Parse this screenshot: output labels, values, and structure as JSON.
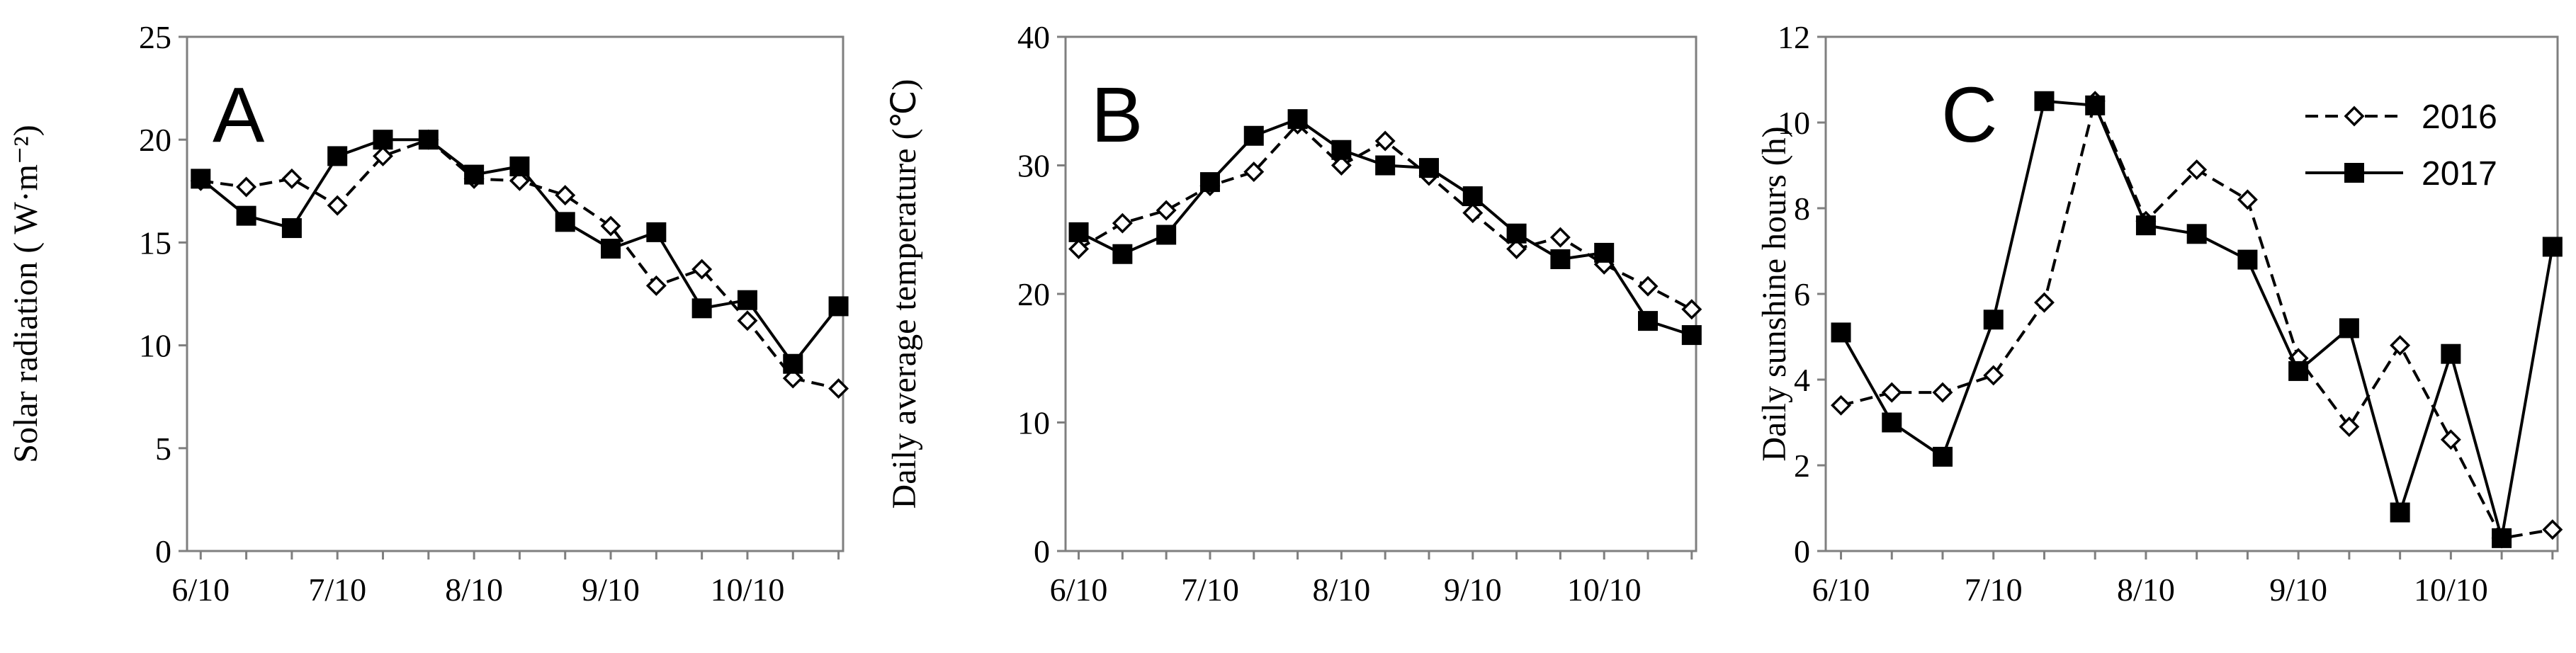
{
  "chart_data": [
    {
      "type": "line",
      "panel": "A",
      "ylabel": "Solar radiation ( W·m⁻²)",
      "ylim": [
        0,
        25
      ],
      "yticks": [
        0,
        5,
        10,
        15,
        20,
        25
      ],
      "xtick_labels": [
        "6/10",
        "7/10",
        "8/10",
        "9/10",
        "10/10"
      ],
      "x_unit": "10-day period",
      "x": [
        0,
        1,
        2,
        3,
        4,
        5,
        6,
        7,
        8,
        9,
        10,
        11,
        12,
        13,
        14
      ],
      "series": [
        {
          "name": "2016",
          "style": "dashed-open-diamond",
          "values": [
            18.0,
            17.7,
            18.1,
            16.8,
            19.2,
            20.0,
            18.1,
            18.0,
            17.3,
            15.8,
            12.9,
            13.7,
            11.2,
            8.4,
            7.9
          ]
        },
        {
          "name": "2017",
          "style": "solid-filled-square",
          "values": [
            18.1,
            16.3,
            15.7,
            19.2,
            20.0,
            20.0,
            18.3,
            18.7,
            16.0,
            14.7,
            15.5,
            11.8,
            12.2,
            9.1,
            11.9
          ]
        }
      ]
    },
    {
      "type": "line",
      "panel": "B",
      "ylabel": "Daily average temperature (℃)",
      "ylim": [
        0,
        40
      ],
      "yticks": [
        0,
        10,
        20,
        30,
        40
      ],
      "xtick_labels": [
        "6/10",
        "7/10",
        "8/10",
        "9/10",
        "10/10"
      ],
      "x_unit": "10-day period",
      "x": [
        0,
        1,
        2,
        3,
        4,
        5,
        6,
        7,
        8,
        9,
        10,
        11,
        12,
        13,
        14
      ],
      "series": [
        {
          "name": "2016",
          "style": "dashed-open-diamond",
          "values": [
            23.5,
            25.5,
            26.5,
            28.4,
            29.5,
            33.2,
            30.0,
            31.9,
            29.2,
            26.3,
            23.5,
            24.4,
            22.3,
            20.6,
            18.8
          ]
        },
        {
          "name": "2017",
          "style": "solid-filled-square",
          "values": [
            24.8,
            23.1,
            24.6,
            28.7,
            32.3,
            33.6,
            31.2,
            30.0,
            29.8,
            27.6,
            24.7,
            22.7,
            23.2,
            17.9,
            16.8
          ]
        }
      ]
    },
    {
      "type": "line",
      "panel": "C",
      "ylabel": "Daily sunshine hours (h)",
      "ylim": [
        0,
        12
      ],
      "yticks": [
        0,
        2,
        4,
        6,
        8,
        10,
        12
      ],
      "xtick_labels": [
        "6/10",
        "7/10",
        "8/10",
        "9/10",
        "10/10"
      ],
      "x_unit": "10-day period",
      "x": [
        0,
        1,
        2,
        3,
        4,
        5,
        6,
        7,
        8,
        9,
        10,
        11,
        12,
        13,
        14
      ],
      "legend": {
        "placement": "top-right",
        "entries": [
          "2016",
          "2017"
        ]
      },
      "series": [
        {
          "name": "2016",
          "style": "dashed-open-diamond",
          "values": [
            3.4,
            3.7,
            3.7,
            4.1,
            5.8,
            10.5,
            7.7,
            8.9,
            8.2,
            4.5,
            2.9,
            4.8,
            2.6,
            0.3,
            0.5
          ]
        },
        {
          "name": "2017",
          "style": "solid-filled-square",
          "values": [
            5.1,
            3.0,
            2.2,
            5.4,
            10.5,
            10.4,
            7.6,
            7.4,
            6.8,
            4.2,
            5.2,
            0.9,
            4.6,
            0.3,
            7.1
          ]
        }
      ]
    }
  ]
}
